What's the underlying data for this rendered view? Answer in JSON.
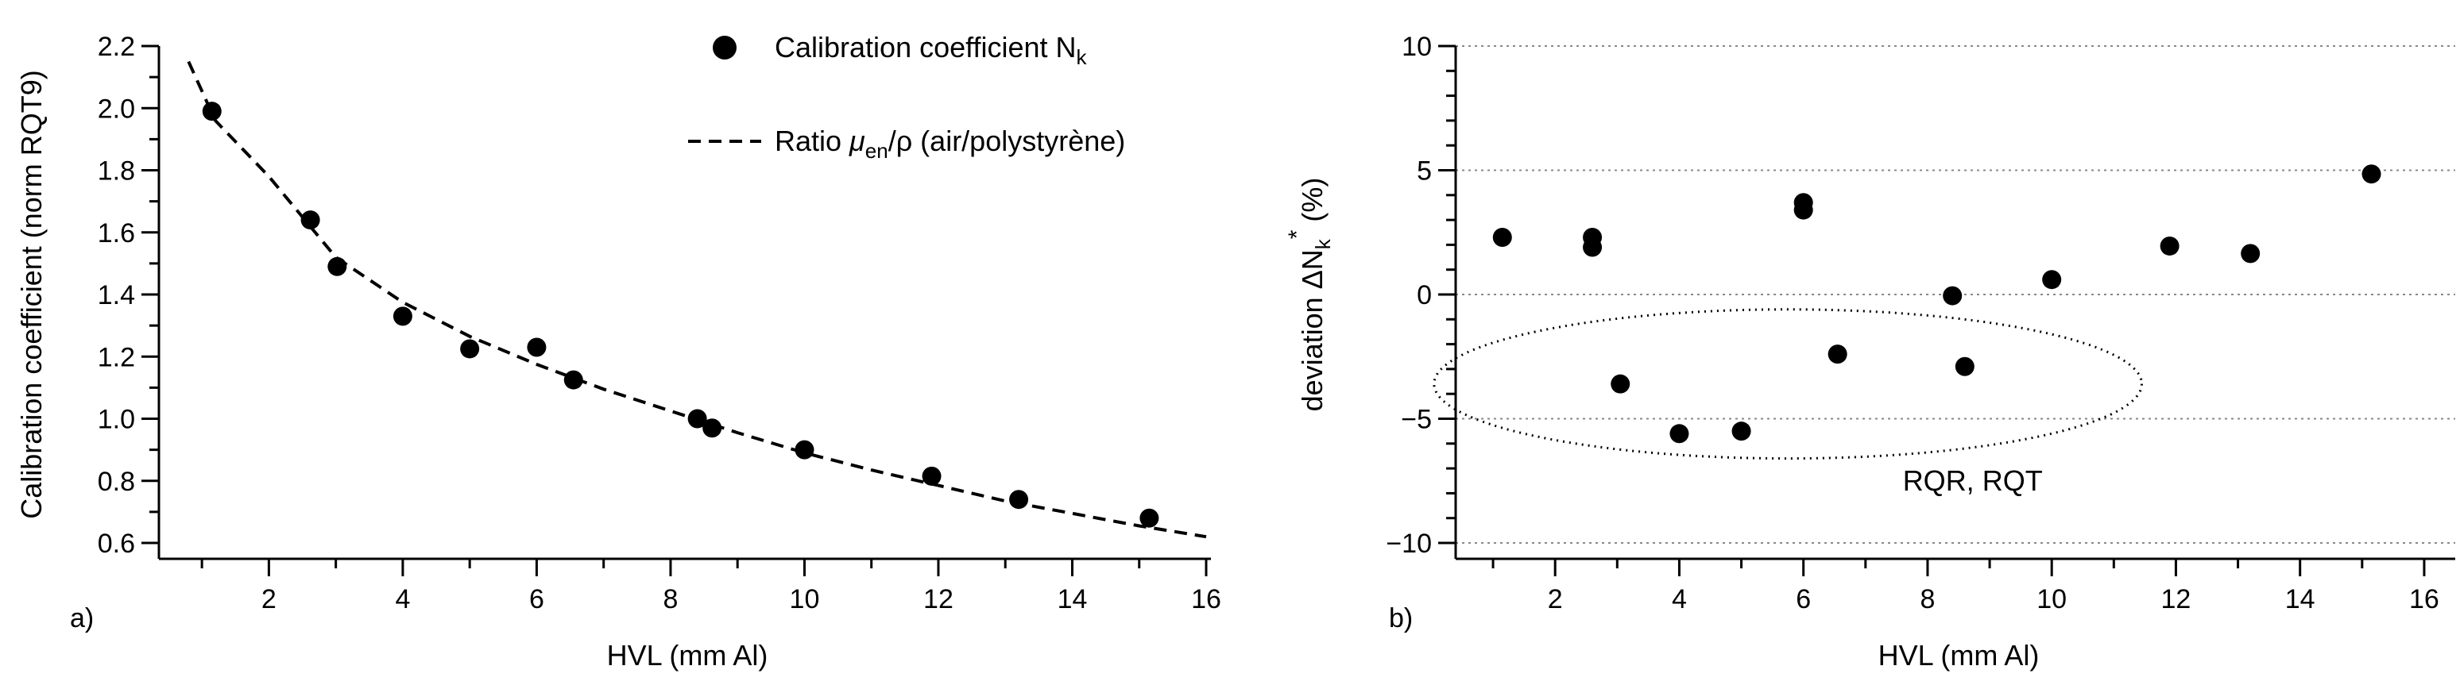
{
  "chart_data": [
    {
      "panel": "a)",
      "type": "scatter",
      "xlabel": "HVL (mm Al)",
      "ylabel": "Calibration coefficient (norm RQT9)",
      "xlim": [
        0.5,
        16
      ],
      "ylim": [
        0.6,
        2.2
      ],
      "xticks": [
        2,
        4,
        6,
        8,
        10,
        12,
        14,
        16
      ],
      "yticks": [
        0.6,
        0.8,
        1.0,
        1.2,
        1.4,
        1.6,
        1.8,
        2.0,
        2.2
      ],
      "ytick_labels": [
        "0.6",
        "0.8",
        "1.0",
        "1.2",
        "1.4",
        "1.6",
        "1.8",
        "2.0",
        "2.2"
      ],
      "legend": {
        "position": "top-right",
        "marker_entry": {
          "text": "Calibration coefficient N",
          "subscript": "k"
        },
        "line_entry": {
          "prefix": "Ratio ",
          "mu": "μ",
          "mu_sub": "en",
          "suffix": "/ρ (air/polystyrène)"
        }
      },
      "series": [
        {
          "name": "Calibration coefficient Nk",
          "style": "markers",
          "x": [
            1.15,
            2.62,
            3.02,
            4.0,
            5.0,
            6.0,
            6.55,
            8.4,
            8.62,
            10.0,
            11.9,
            13.2,
            15.15
          ],
          "y": [
            1.99,
            1.64,
            1.49,
            1.33,
            1.225,
            1.23,
            1.125,
            1.0,
            0.97,
            0.9,
            0.815,
            0.74,
            0.68
          ]
        },
        {
          "name": "Ratio μen/ρ (air/polystyrène)",
          "style": "dashed-line",
          "x": [
            0.8,
            1.2,
            2.0,
            3.0,
            4.0,
            5.0,
            6.0,
            7.0,
            8.0,
            9.0,
            10.0,
            11.0,
            12.0,
            13.0,
            14.0,
            15.0,
            16.0
          ],
          "y": [
            2.15,
            1.96,
            1.78,
            1.52,
            1.375,
            1.265,
            1.175,
            1.095,
            1.025,
            0.955,
            0.89,
            0.835,
            0.785,
            0.735,
            0.695,
            0.655,
            0.62
          ]
        }
      ]
    },
    {
      "panel": "b)",
      "type": "scatter",
      "xlabel": "HVL (mm Al)",
      "ylabel": {
        "prefix": "deviation ΔN",
        "sub": "k",
        "sup": "*",
        "suffix": " (%)"
      },
      "xlim": [
        0.5,
        16.5
      ],
      "ylim": [
        -10,
        10
      ],
      "xticks": [
        2,
        4,
        6,
        8,
        10,
        12,
        14,
        16
      ],
      "yticks": [
        -10,
        -5,
        0,
        5,
        10
      ],
      "ytick_labels": [
        "−10",
        "−5",
        "0",
        "5",
        "10"
      ],
      "grid": "horizontal-dotted",
      "annotation": {
        "text": "RQR, RQT",
        "shape": "dotted-ellipse"
      },
      "series": [
        {
          "name": "deviation",
          "style": "markers",
          "x": [
            1.15,
            2.6,
            2.6,
            3.05,
            4.0,
            5.0,
            6.0,
            6.0,
            6.55,
            8.4,
            8.6,
            10.0,
            11.9,
            13.2,
            15.15
          ],
          "y": [
            2.3,
            2.3,
            1.9,
            -3.6,
            -5.6,
            -5.5,
            3.7,
            3.4,
            -2.4,
            -0.05,
            -2.9,
            0.6,
            1.95,
            1.65,
            4.85
          ]
        }
      ]
    }
  ]
}
